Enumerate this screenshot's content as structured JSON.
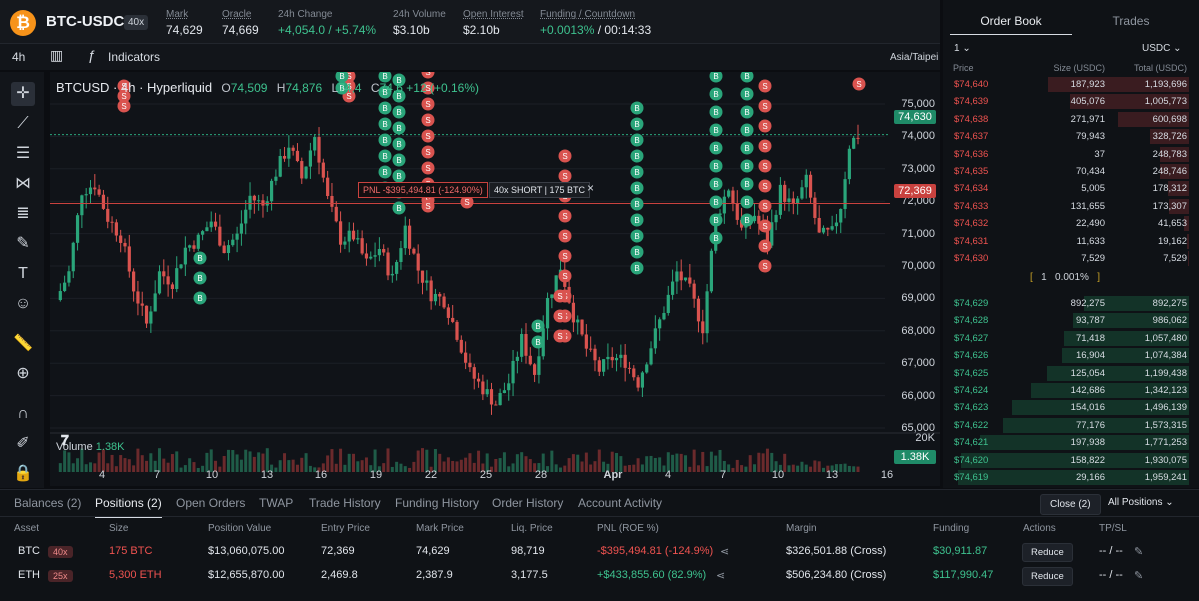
{
  "header": {
    "symbol": "BTC-USDC",
    "leverage": "40x",
    "stats": [
      {
        "label": "Mark",
        "value": "74,629"
      },
      {
        "label": "Oracle",
        "value": "74,669"
      },
      {
        "label": "24h Change",
        "value": "+4,054.0 / +5.74%"
      },
      {
        "label": "24h Volume",
        "value": "$3.10b"
      },
      {
        "label": "Open Interest",
        "value": "$2.10b"
      },
      {
        "label": "Funding / Countdown",
        "value": "+0.0013%",
        "value2": "/ 00:14:33"
      }
    ]
  },
  "toolbar": {
    "interval": "4h",
    "indicators": "Indicators",
    "timezone": "Asia/Taipei"
  },
  "chart_data": {
    "type": "candlestick",
    "title": "BTCUSD · 4h · Hyperliquid",
    "ohlc": {
      "O": "74,509",
      "H": "74,876",
      "L": "74,4",
      "C": "74,6",
      "chg": "+12",
      "pct": "(+0.16%)"
    },
    "y_ticks": [
      "75,000",
      "74,000",
      "73,000",
      "72,000",
      "71,000",
      "70,000",
      "69,000",
      "68,000",
      "67,000",
      "66,000",
      "65,000"
    ],
    "x_ticks": [
      "4",
      "7",
      "10",
      "13",
      "16",
      "19",
      "22",
      "25",
      "28",
      "Apr",
      "4",
      "7",
      "10",
      "13",
      "16"
    ],
    "ylim": [
      64800,
      75900
    ],
    "close_path": [
      [
        0,
        69200
      ],
      [
        3,
        70100
      ],
      [
        6,
        72800
      ],
      [
        9,
        73000
      ],
      [
        12,
        71900
      ],
      [
        15,
        71300
      ],
      [
        18,
        69600
      ],
      [
        21,
        68400
      ],
      [
        24,
        70100
      ],
      [
        27,
        69800
      ],
      [
        30,
        70900
      ],
      [
        33,
        71200
      ],
      [
        36,
        71800
      ],
      [
        39,
        70900
      ],
      [
        42,
        71300
      ],
      [
        45,
        72600
      ],
      [
        48,
        72300
      ],
      [
        51,
        73400
      ],
      [
        54,
        74300
      ],
      [
        57,
        73200
      ],
      [
        60,
        74600
      ],
      [
        63,
        72500
      ],
      [
        66,
        71200
      ],
      [
        69,
        71300
      ],
      [
        72,
        70400
      ],
      [
        75,
        70900
      ],
      [
        78,
        69900
      ],
      [
        81,
        71600
      ],
      [
        84,
        70200
      ],
      [
        87,
        69400
      ],
      [
        90,
        69200
      ],
      [
        93,
        68100
      ],
      [
        96,
        66800
      ],
      [
        99,
        66300
      ],
      [
        102,
        65800
      ],
      [
        105,
        66500
      ],
      [
        108,
        67900
      ],
      [
        111,
        66800
      ],
      [
        114,
        69200
      ],
      [
        117,
        70300
      ],
      [
        120,
        68700
      ],
      [
        123,
        67600
      ],
      [
        126,
        66900
      ],
      [
        129,
        67300
      ],
      [
        132,
        67200
      ],
      [
        135,
        66500
      ],
      [
        138,
        67700
      ],
      [
        141,
        68900
      ],
      [
        144,
        70100
      ],
      [
        147,
        69500
      ],
      [
        150,
        68300
      ],
      [
        153,
        71900
      ],
      [
        156,
        72900
      ],
      [
        159,
        71500
      ],
      [
        162,
        72000
      ],
      [
        165,
        71100
      ],
      [
        168,
        72800
      ],
      [
        171,
        72200
      ],
      [
        174,
        73100
      ],
      [
        177,
        71300
      ],
      [
        180,
        71400
      ],
      [
        182,
        72300
      ],
      [
        184,
        74300
      ],
      [
        186,
        74630
      ]
    ],
    "price_tag": "74,630",
    "pnl_line_price": "72,369",
    "pnl_label": "PNL -$395,494.81 (-124.90%)",
    "short_label": "40x SHORT | 175 BTC",
    "volume_label": "Volume",
    "volume_value": "1.38K",
    "vol_axis": "20K",
    "vol_tag": "1.38K"
  },
  "orderbook": {
    "tabs": [
      "Order Book",
      "Trades"
    ],
    "size_sel": "1",
    "unit_sel": "USDC",
    "headers": [
      "Price",
      "Size (USDC)",
      "Total (USDC)"
    ],
    "asks": [
      [
        "$74,640",
        "187,923",
        "1,193,696"
      ],
      [
        "$74,639",
        "405,076",
        "1,005,773"
      ],
      [
        "$74,638",
        "271,971",
        "600,698"
      ],
      [
        "$74,637",
        "79,943",
        "328,726"
      ],
      [
        "$74,636",
        "37",
        "248,783"
      ],
      [
        "$74,635",
        "70,434",
        "248,746"
      ],
      [
        "$74,634",
        "5,005",
        "178,312"
      ],
      [
        "$74,633",
        "131,655",
        "173,307"
      ],
      [
        "$74,632",
        "22,490",
        "41,653"
      ],
      [
        "$74,631",
        "11,633",
        "19,162"
      ],
      [
        "$74,630",
        "7,529",
        "7,529"
      ]
    ],
    "spread": [
      "1",
      "0.001%"
    ],
    "bids": [
      [
        "$74,629",
        "892,275",
        "892,275"
      ],
      [
        "$74,628",
        "93,787",
        "986,062"
      ],
      [
        "$74,627",
        "71,418",
        "1,057,480"
      ],
      [
        "$74,626",
        "16,904",
        "1,074,384"
      ],
      [
        "$74,625",
        "125,054",
        "1,199,438"
      ],
      [
        "$74,624",
        "142,686",
        "1,342,123"
      ],
      [
        "$74,623",
        "154,016",
        "1,496,139"
      ],
      [
        "$74,622",
        "77,176",
        "1,573,315"
      ],
      [
        "$74,621",
        "197,938",
        "1,771,253"
      ],
      [
        "$74,620",
        "158,822",
        "1,930,075"
      ],
      [
        "$74,619",
        "29,166",
        "1,959,241"
      ]
    ]
  },
  "bottom": {
    "tabs": [
      "Balances (2)",
      "Positions (2)",
      "Open Orders",
      "TWAP",
      "Trade History",
      "Funding History",
      "Order History",
      "Account Activity"
    ],
    "close_btn": "Close (2)",
    "all_positions": "All Positions",
    "columns": [
      "Asset",
      "Size",
      "Position Value",
      "Entry Price",
      "Mark Price",
      "Liq. Price",
      "PNL (ROE %)",
      "Margin",
      "Funding",
      "Actions",
      "TP/SL"
    ],
    "rows": [
      {
        "asset": "BTC",
        "lev": "40x",
        "size": "175 BTC",
        "value": "$13,060,075.00",
        "entry": "72,369",
        "mark": "74,629",
        "liq": "98,719",
        "pnl": "-$395,494.81 (-124.9%)",
        "margin": "$326,501.88 (Cross)",
        "funding": "$30,911.87",
        "action": "Reduce",
        "tpsl": "-- / --"
      },
      {
        "asset": "ETH",
        "lev": "25x",
        "size": "5,300 ETH",
        "value": "$12,655,870.00",
        "entry": "2,469.8",
        "mark": "2,387.9",
        "liq": "3,177.5",
        "pnl": "+$433,855.60 (82.9%)",
        "margin": "$506,234.80 (Cross)",
        "funding": "$117,990.47",
        "action": "Reduce",
        "tpsl": "-- / --"
      }
    ]
  }
}
